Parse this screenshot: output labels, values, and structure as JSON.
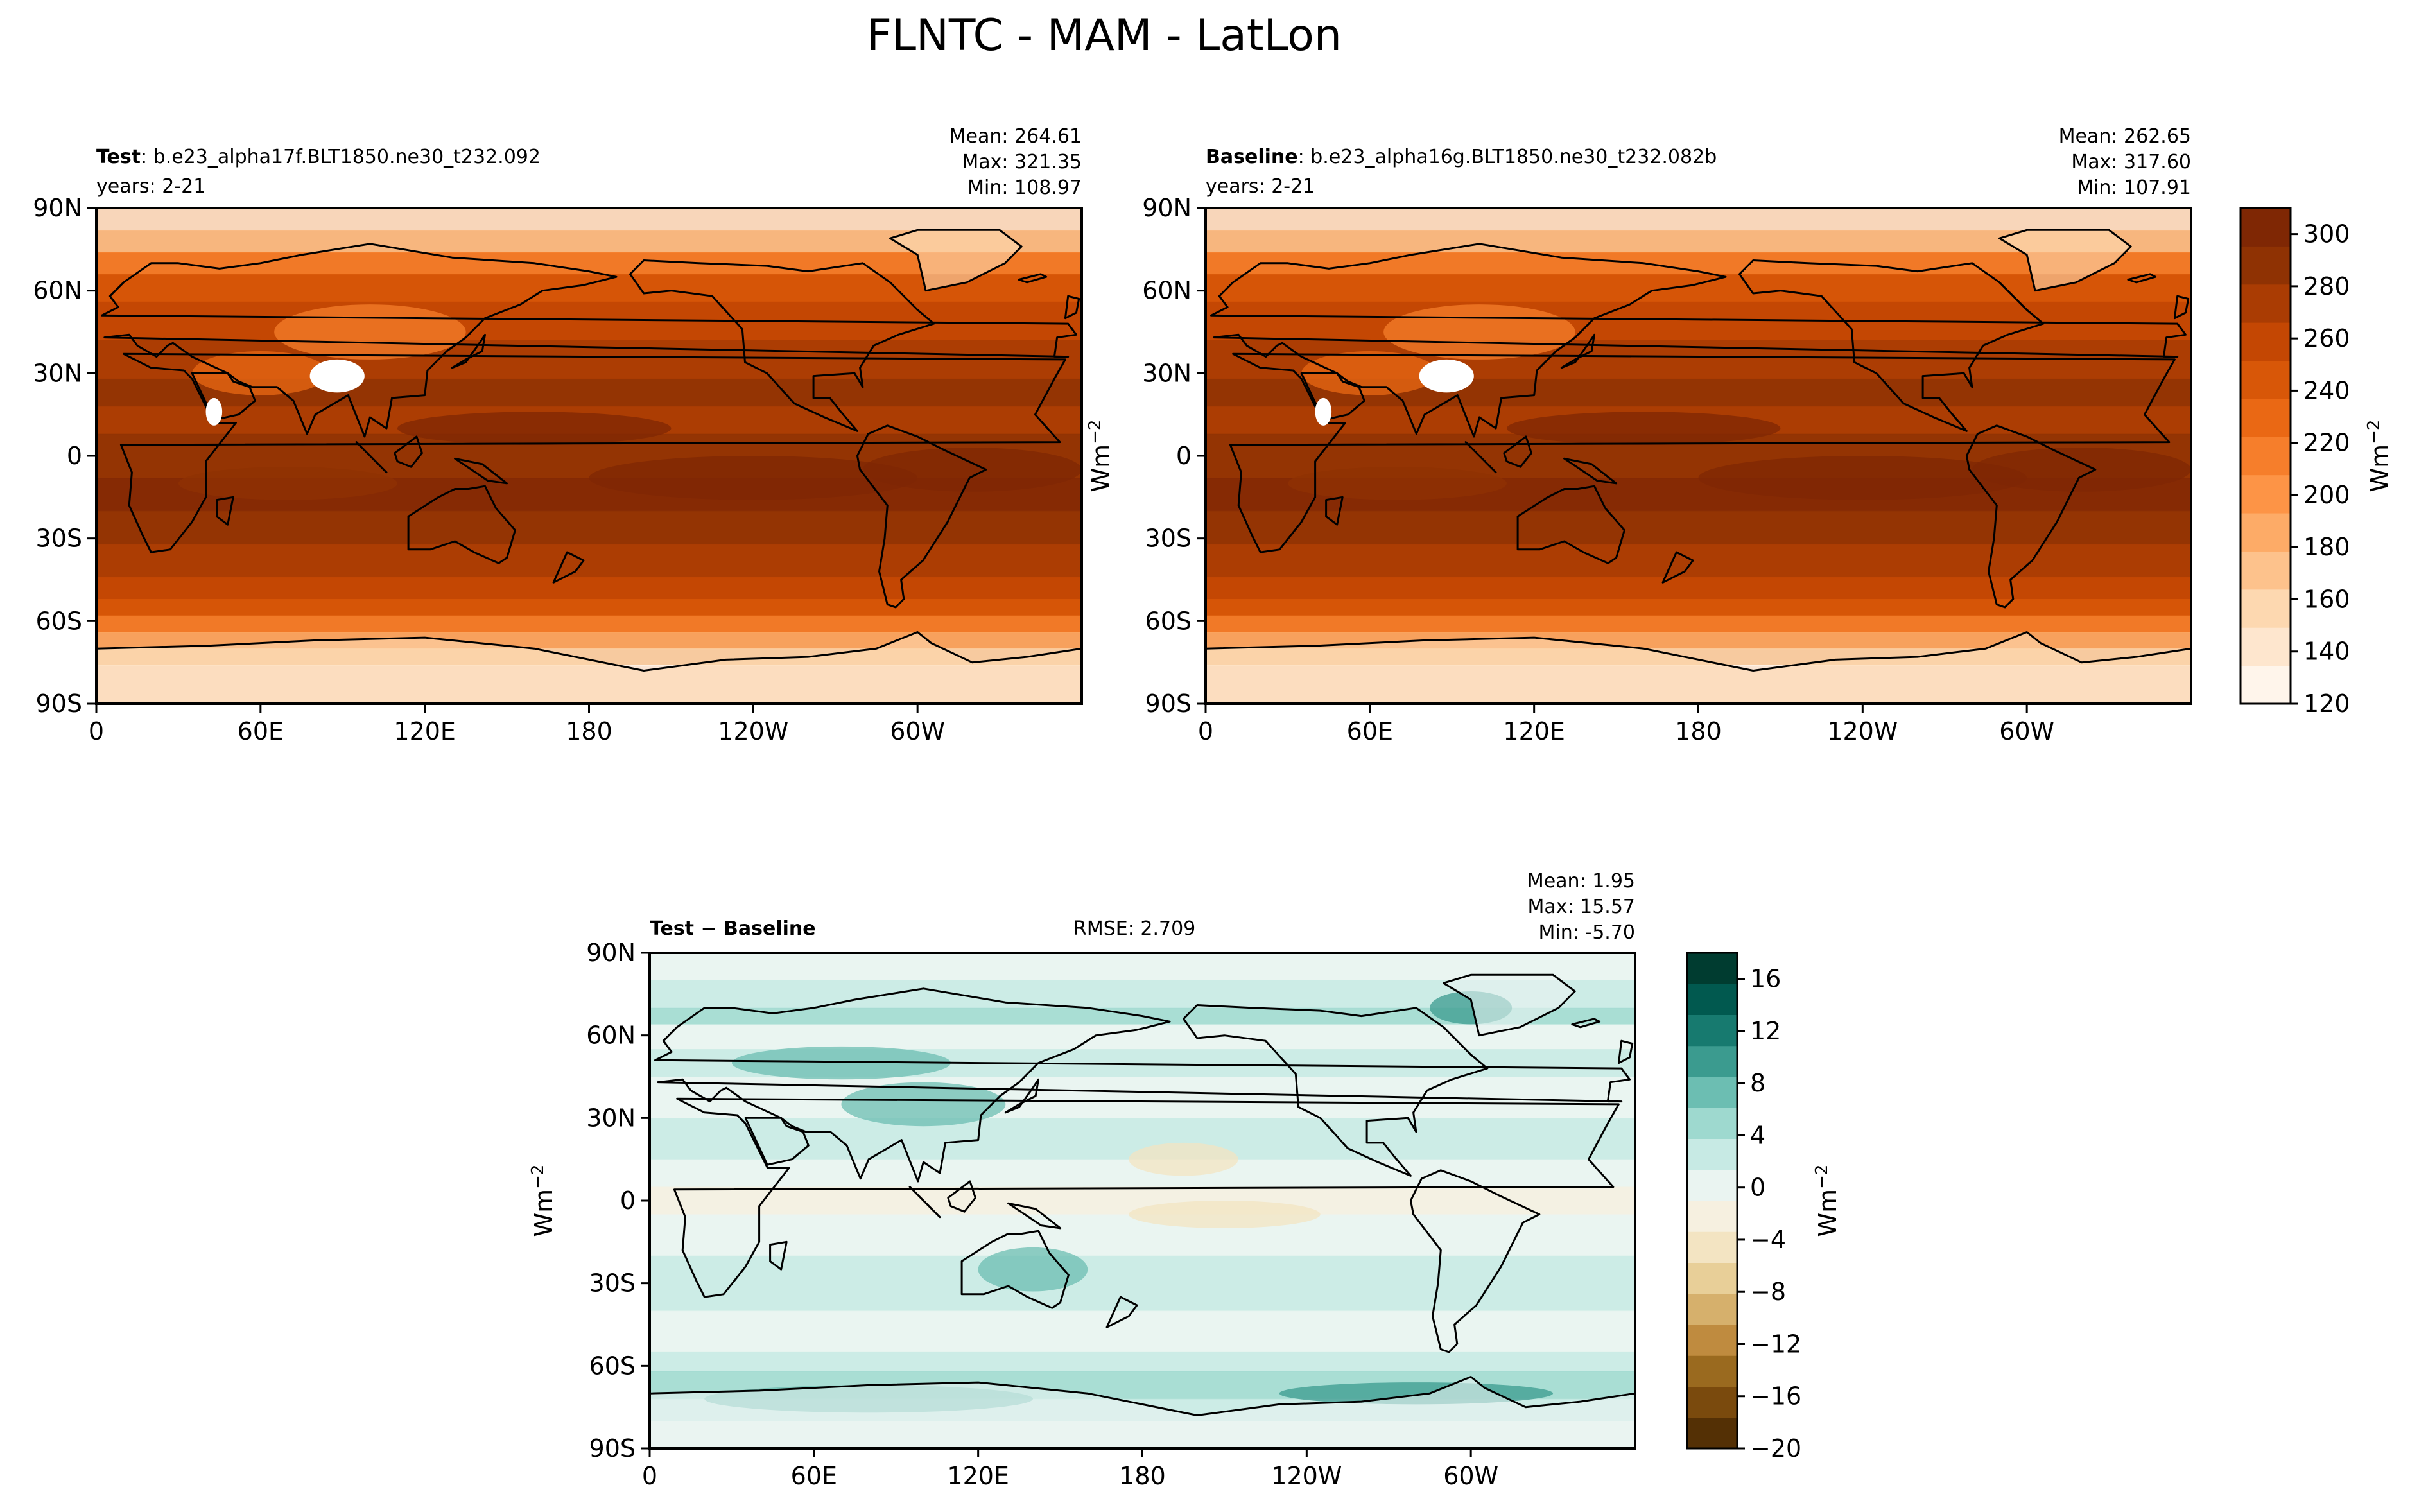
{
  "figure": {
    "title": "FLNTC - MAM - LatLon"
  },
  "colors": {
    "orange_ramp": [
      "#fff5eb",
      "#fee6ce",
      "#fdd8b0",
      "#fdc28c",
      "#fdab67",
      "#fd9446",
      "#f67e2b",
      "#ea6814",
      "#d85708",
      "#c44703",
      "#aa3c03",
      "#8f3203",
      "#7f2704"
    ],
    "diff_ramp": [
      "#543005",
      "#7a4a0d",
      "#9a6a1f",
      "#bf8b3f",
      "#d6b06c",
      "#e8cf98",
      "#f3e4c2",
      "#f6f0e0",
      "#eaf4f1",
      "#c7eae4",
      "#9ed9cf",
      "#6cbeb2",
      "#3b9b8f",
      "#177a6f",
      "#01594f",
      "#003c30"
    ]
  },
  "chart_data": [
    {
      "type": "heatmap",
      "panel": "test",
      "label_bold": "Test",
      "label_rest": ": b.e23_alpha17f.BLT1850.ne30_t232.092",
      "years": "years: 2-21",
      "stats": [
        "Mean: 264.61",
        "Max: 321.35",
        "Min: 108.97"
      ],
      "xticks": [
        "0",
        "60E",
        "120E",
        "180",
        "120W",
        "60W"
      ],
      "yticks": [
        "90N",
        "60N",
        "30N",
        "0",
        "30S",
        "60S",
        "90S"
      ],
      "xlim": [
        0,
        360
      ],
      "ylim": [
        -90,
        90
      ]
    },
    {
      "type": "heatmap",
      "panel": "baseline",
      "label_bold": "Baseline",
      "label_rest": ": b.e23_alpha16g.BLT1850.ne30_t232.082b",
      "years": "years: 2-21",
      "stats": [
        "Mean: 262.65",
        "Max: 317.60",
        "Min: 107.91"
      ],
      "xticks": [
        "0",
        "60E",
        "120E",
        "180",
        "120W",
        "60W"
      ],
      "yticks": [
        "90N",
        "60N",
        "30N",
        "0",
        "30S",
        "60S",
        "90S"
      ],
      "xlim": [
        0,
        360
      ],
      "ylim": [
        -90,
        90
      ],
      "ylabel": "Wm",
      "ylabel_sup": "−2"
    },
    {
      "type": "heatmap",
      "panel": "difference",
      "label_bold": "Test − Baseline",
      "rmse": "RMSE: 2.709",
      "stats": [
        "Mean:  1.95",
        "Max: 15.57",
        "Min: -5.70"
      ],
      "xticks": [
        "0",
        "60E",
        "120E",
        "180",
        "120W",
        "60W"
      ],
      "yticks": [
        "90N",
        "60N",
        "30N",
        "0",
        "30S",
        "60S",
        "90S"
      ],
      "xlim": [
        0,
        360
      ],
      "ylim": [
        -90,
        90
      ],
      "ylabel": "Wm",
      "ylabel_sup": "−2"
    }
  ],
  "colorbars": {
    "main": {
      "ticks": [
        "120",
        "140",
        "160",
        "180",
        "200",
        "220",
        "240",
        "260",
        "280",
        "300"
      ],
      "tick_values": [
        120,
        140,
        160,
        180,
        200,
        220,
        240,
        260,
        280,
        300
      ],
      "range": [
        120,
        310
      ],
      "label": "Wm",
      "label_sup": "−2"
    },
    "diff": {
      "ticks": [
        "−20",
        "−16",
        "−12",
        "−8",
        "−4",
        "0",
        "4",
        "8",
        "12",
        "16"
      ],
      "tick_values": [
        -20,
        -16,
        -12,
        -8,
        -4,
        0,
        4,
        8,
        12,
        16
      ],
      "range": [
        -20,
        18
      ],
      "label": "Wm",
      "label_sup": "−2"
    }
  }
}
